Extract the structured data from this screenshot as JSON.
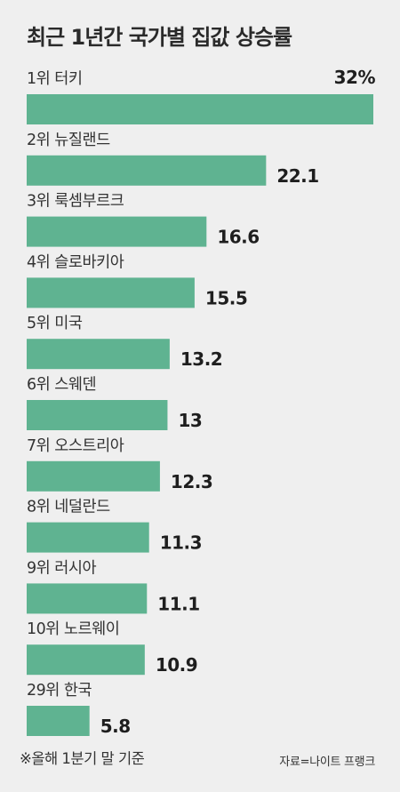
{
  "title": "최근 1년간 국가별 집값 상승률",
  "footnote": "※올해 1분기 말 기준",
  "source": "자료=나이트 프랭크",
  "chart_data": {
    "type": "bar",
    "orientation": "horizontal",
    "title": "최근 1년간 국가별 집값 상승률",
    "unit": "%",
    "bar_color": "#5fb391",
    "categories": [
      "1위 터키",
      "2위 뉴질랜드",
      "3위 룩셈부르크",
      "4위 슬로바키아",
      "5위 미국",
      "6위 스웨덴",
      "7위 오스트리아",
      "8위 네덜란드",
      "9위 러시아",
      "10위 노르웨이",
      "29위 한국"
    ],
    "values": [
      32,
      22.1,
      16.6,
      15.5,
      13.2,
      13,
      12.3,
      11.3,
      11.1,
      10.9,
      5.8
    ],
    "value_labels": [
      "32%",
      "22.1",
      "16.6",
      "15.5",
      "13.2",
      "13",
      "12.3",
      "11.3",
      "11.1",
      "10.9",
      "5.8"
    ],
    "xlim": [
      0,
      32
    ]
  }
}
